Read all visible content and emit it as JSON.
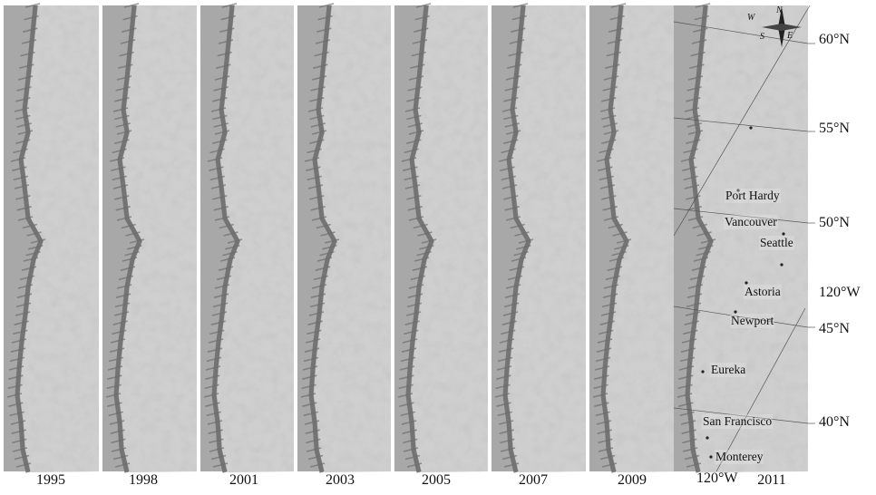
{
  "panels": [
    {
      "year": "1995"
    },
    {
      "year": "1998"
    },
    {
      "year": "2001"
    },
    {
      "year": "2003"
    },
    {
      "year": "2005"
    },
    {
      "year": "2007"
    },
    {
      "year": "2009"
    },
    {
      "year": "2011"
    }
  ],
  "latitude_labels": [
    "60°N",
    "55°N",
    "50°N",
    "45°N",
    "40°N"
  ],
  "longitude_labels": {
    "right": "120°W",
    "bottom": "120°W"
  },
  "cities": [
    "Port Hardy",
    "Vancouver",
    "Seattle",
    "Astoria",
    "Newport",
    "Eureka",
    "San Francisco",
    "Monterey"
  ],
  "compass": {
    "n": "N",
    "s": "S",
    "e": "E",
    "w": "W"
  },
  "colors": {
    "ocean": "#a8a8a8",
    "land": "#cfcfcf",
    "survey": "#6e6e6e",
    "grid": "#555555"
  }
}
